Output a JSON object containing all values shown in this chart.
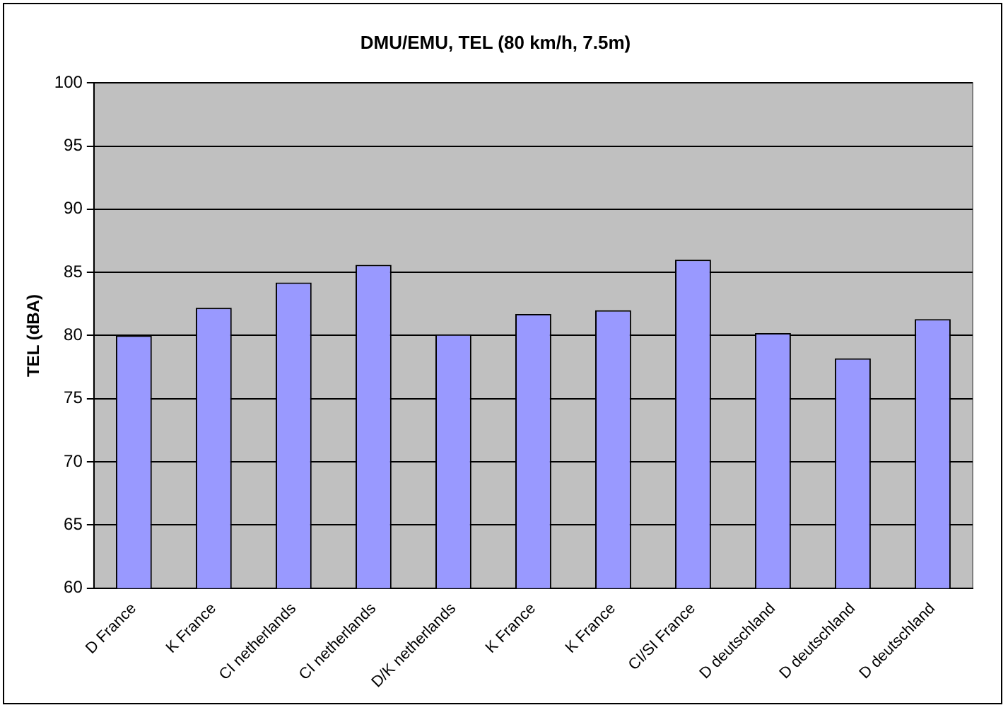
{
  "chart_data": {
    "type": "bar",
    "title": "DMU/EMU, TEL (80 km/h, 7.5m)",
    "ylabel": "TEL (dBA)",
    "categories": [
      "D France",
      "K France",
      "CI netherlands",
      "CI netherlands",
      "D/K netherlands",
      "K France",
      "K France",
      "CI/SI France",
      "D deutschland",
      "D deutschland",
      "D deutschland"
    ],
    "values": [
      80.0,
      82.2,
      84.2,
      85.6,
      80.1,
      81.7,
      82.0,
      86.0,
      80.2,
      78.2,
      81.3
    ],
    "color": "#9999ff",
    "ylim": [
      60,
      100
    ],
    "yticks": [
      60,
      65,
      70,
      75,
      80,
      85,
      90,
      95,
      100
    ],
    "grid": "y",
    "legend": false
  }
}
